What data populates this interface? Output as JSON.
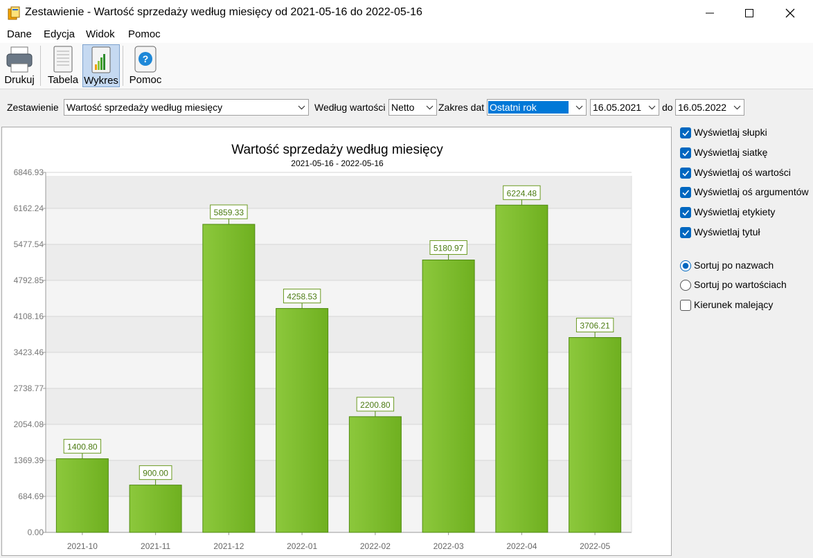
{
  "window": {
    "title": "Zestawienie - Wartość sprzedaży według miesięcy od 2021-05-16 do 2022-05-16"
  },
  "menu": [
    "Dane",
    "Edycja",
    "Widok",
    "Pomoc"
  ],
  "toolbar": [
    "Drukuj",
    "Tabela",
    "Wykres",
    "Pomoc"
  ],
  "controls": {
    "report_label": "Zestawienie",
    "report_value": "Wartość sprzedaży według miesięcy",
    "by_label": "Według wartości",
    "by_value": "Netto",
    "range_label": "Zakres dat",
    "range_value": "Ostatni rok",
    "date_from": "16.05.2021",
    "to_label": "do",
    "date_to": "16.05.2022"
  },
  "options": {
    "display": [
      {
        "label": "Wyświetlaj słupki",
        "checked": true
      },
      {
        "label": "Wyświetlaj siatkę",
        "checked": true
      },
      {
        "label": "Wyświetlaj oś wartości",
        "checked": true
      },
      {
        "label": "Wyświetlaj oś argumentów",
        "checked": true
      },
      {
        "label": "Wyświetlaj etykiety",
        "checked": true
      },
      {
        "label": "Wyświetlaj tytuł",
        "checked": true
      }
    ],
    "sort": [
      {
        "label": "Sortuj po nazwach",
        "checked": true
      },
      {
        "label": "Sortuj po wartościach",
        "checked": false
      }
    ],
    "descending": {
      "label": "Kierunek malejący",
      "checked": false
    }
  },
  "chart_data": {
    "type": "bar",
    "title": "Wartość sprzedaży według miesięcy",
    "subtitle": "2021-05-16 - 2022-05-16",
    "categories": [
      "2021-10",
      "2021-11",
      "2021-12",
      "2022-01",
      "2022-02",
      "2022-03",
      "2022-04",
      "2022-05"
    ],
    "values": [
      1400.8,
      900,
      5859.33,
      4258.53,
      2200.8,
      5180.97,
      6224.48,
      3706.21
    ],
    "value_labels": [
      "1400.80",
      "900.00",
      "5859.33",
      "4258.53",
      "2200.80",
      "5180.97",
      "6224.48",
      "3706.21"
    ],
    "color": "#6fb020",
    "ylim": [
      0,
      6846.93
    ],
    "yticks": [
      {
        "value": 0,
        "label": "0.00"
      },
      684.69,
      1369.39,
      2054.08,
      2738.77,
      3423.46,
      4108.16,
      4792.85,
      5477.54,
      6162.24,
      6846.93
    ],
    "grid": true
  }
}
